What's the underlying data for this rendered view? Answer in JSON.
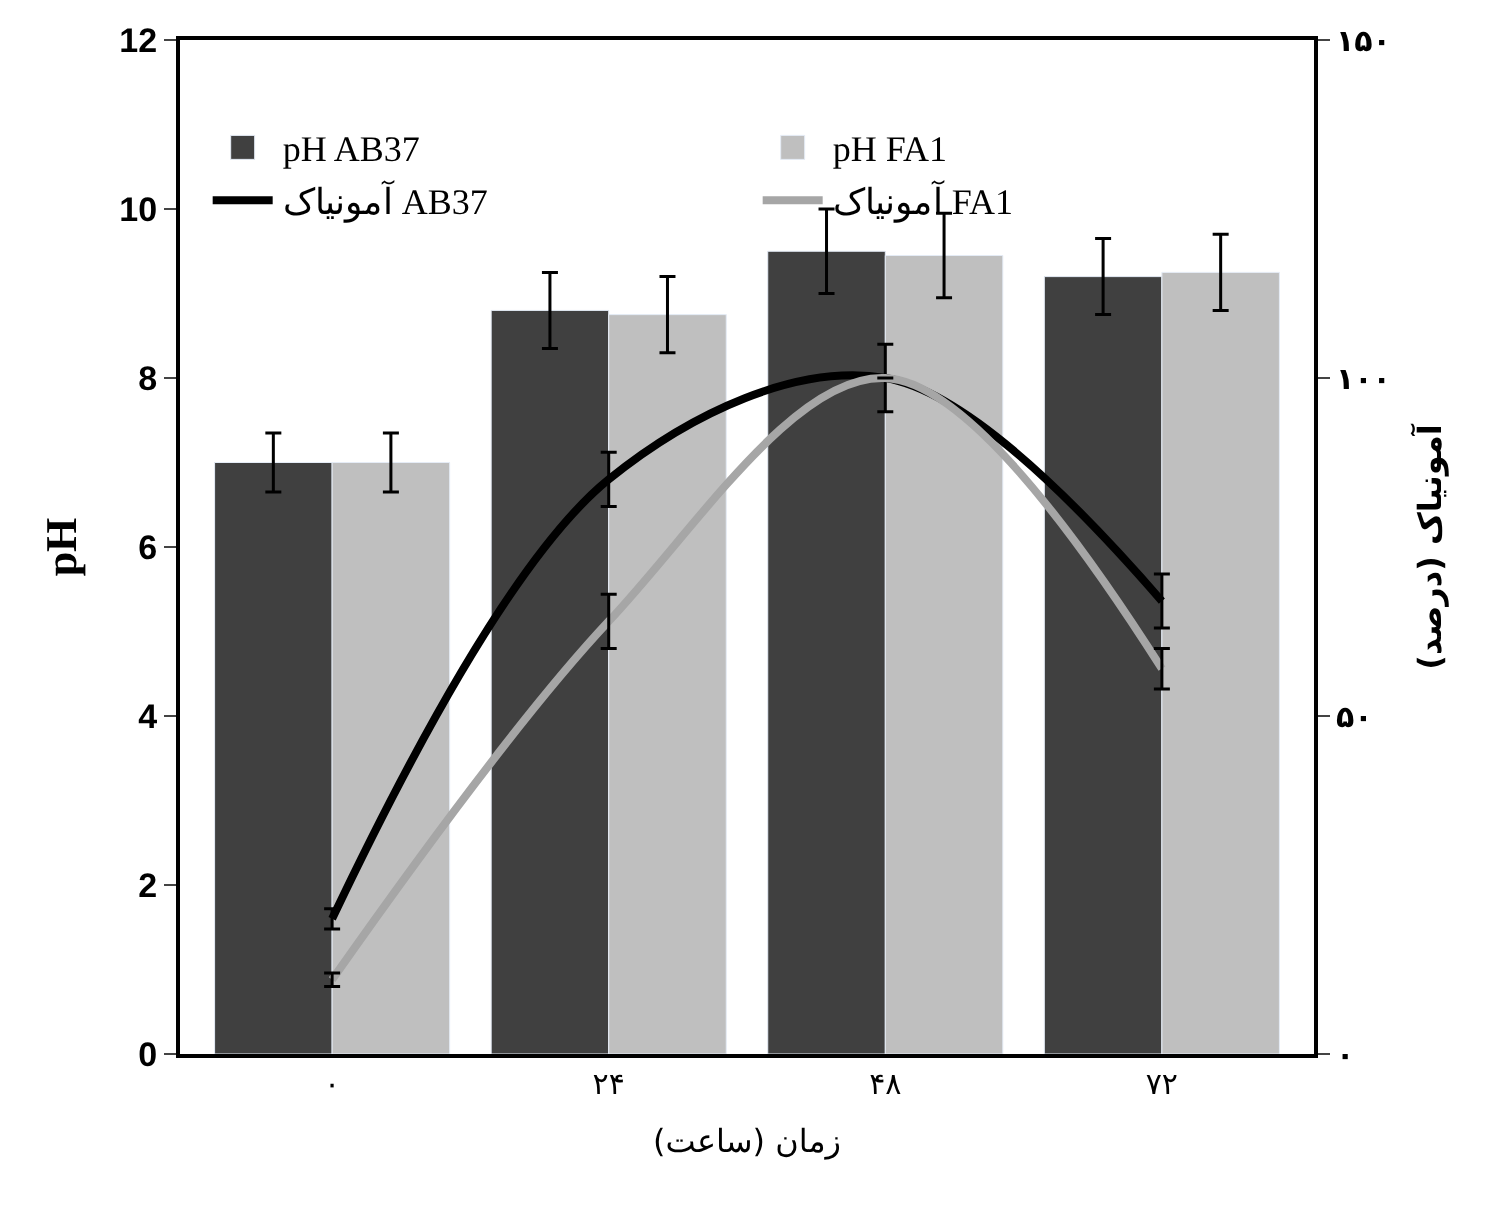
{
  "chart_data": {
    "type": "bar",
    "xlabel": "زمان (ساعت)",
    "ylabel": "pH",
    "y2label": "آمونیاک (درصد)",
    "categories": [
      "۰",
      "۲۴",
      "۴۸",
      "۷۲"
    ],
    "series": [
      {
        "name": "pH AB37",
        "color": "#404040",
        "values": [
          7.0,
          8.8,
          9.5,
          9.2
        ],
        "errors": [
          0.35,
          0.45,
          0.5,
          0.45
        ]
      },
      {
        "name": "pH FA1",
        "color": "#bfbfbf",
        "values": [
          7.0,
          8.75,
          9.45,
          9.25
        ],
        "errors": [
          0.35,
          0.45,
          0.5,
          0.45
        ]
      },
      {
        "name": "آمونیاک AB37",
        "type": "line",
        "axis": "y2",
        "color": "#000000",
        "values": [
          20,
          85,
          100,
          67
        ],
        "errors": [
          1.5,
          4,
          5,
          4
        ]
      },
      {
        "name": "آمونیاک FA1",
        "type": "line",
        "axis": "y2",
        "color": "#a6a6a6",
        "marker": "none",
        "values": [
          11,
          64,
          100,
          57
        ],
        "errors": [
          1,
          4,
          null,
          3
        ]
      }
    ],
    "ylim": [
      0,
      12
    ],
    "yticks": [
      0,
      2,
      4,
      6,
      8,
      10,
      12
    ],
    "y2lim": [
      0,
      150
    ],
    "y2ticks": [
      {
        "value": 0,
        "label": "۰"
      },
      {
        "value": 50,
        "label": "۵۰"
      },
      {
        "value": 100,
        "label": "۱۰۰"
      },
      {
        "value": 150,
        "label": "۱۵۰"
      }
    ],
    "legend": "top left"
  }
}
